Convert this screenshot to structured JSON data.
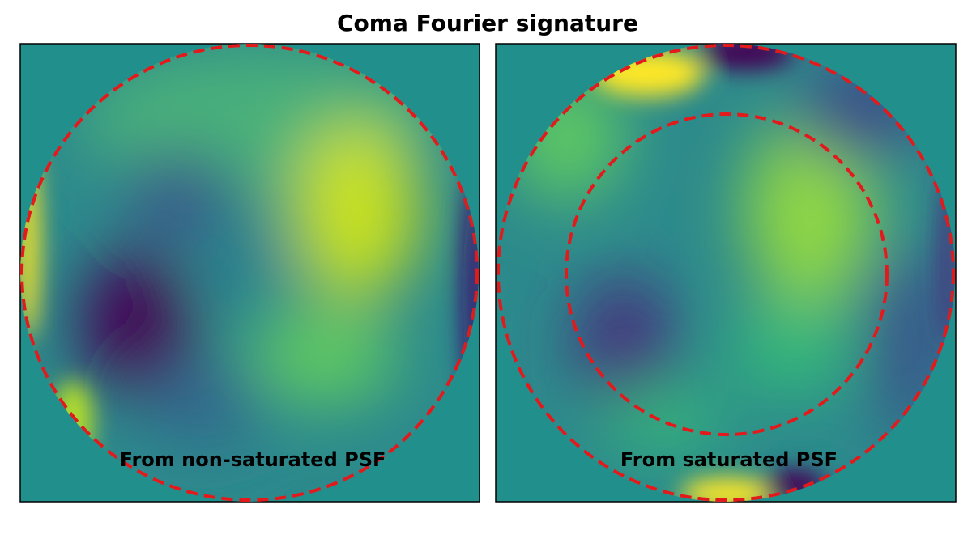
{
  "title": "Coma Fourier signature",
  "panels": [
    {
      "label": "From non-saturated PSF"
    },
    {
      "label": "From saturated PSF"
    }
  ]
}
